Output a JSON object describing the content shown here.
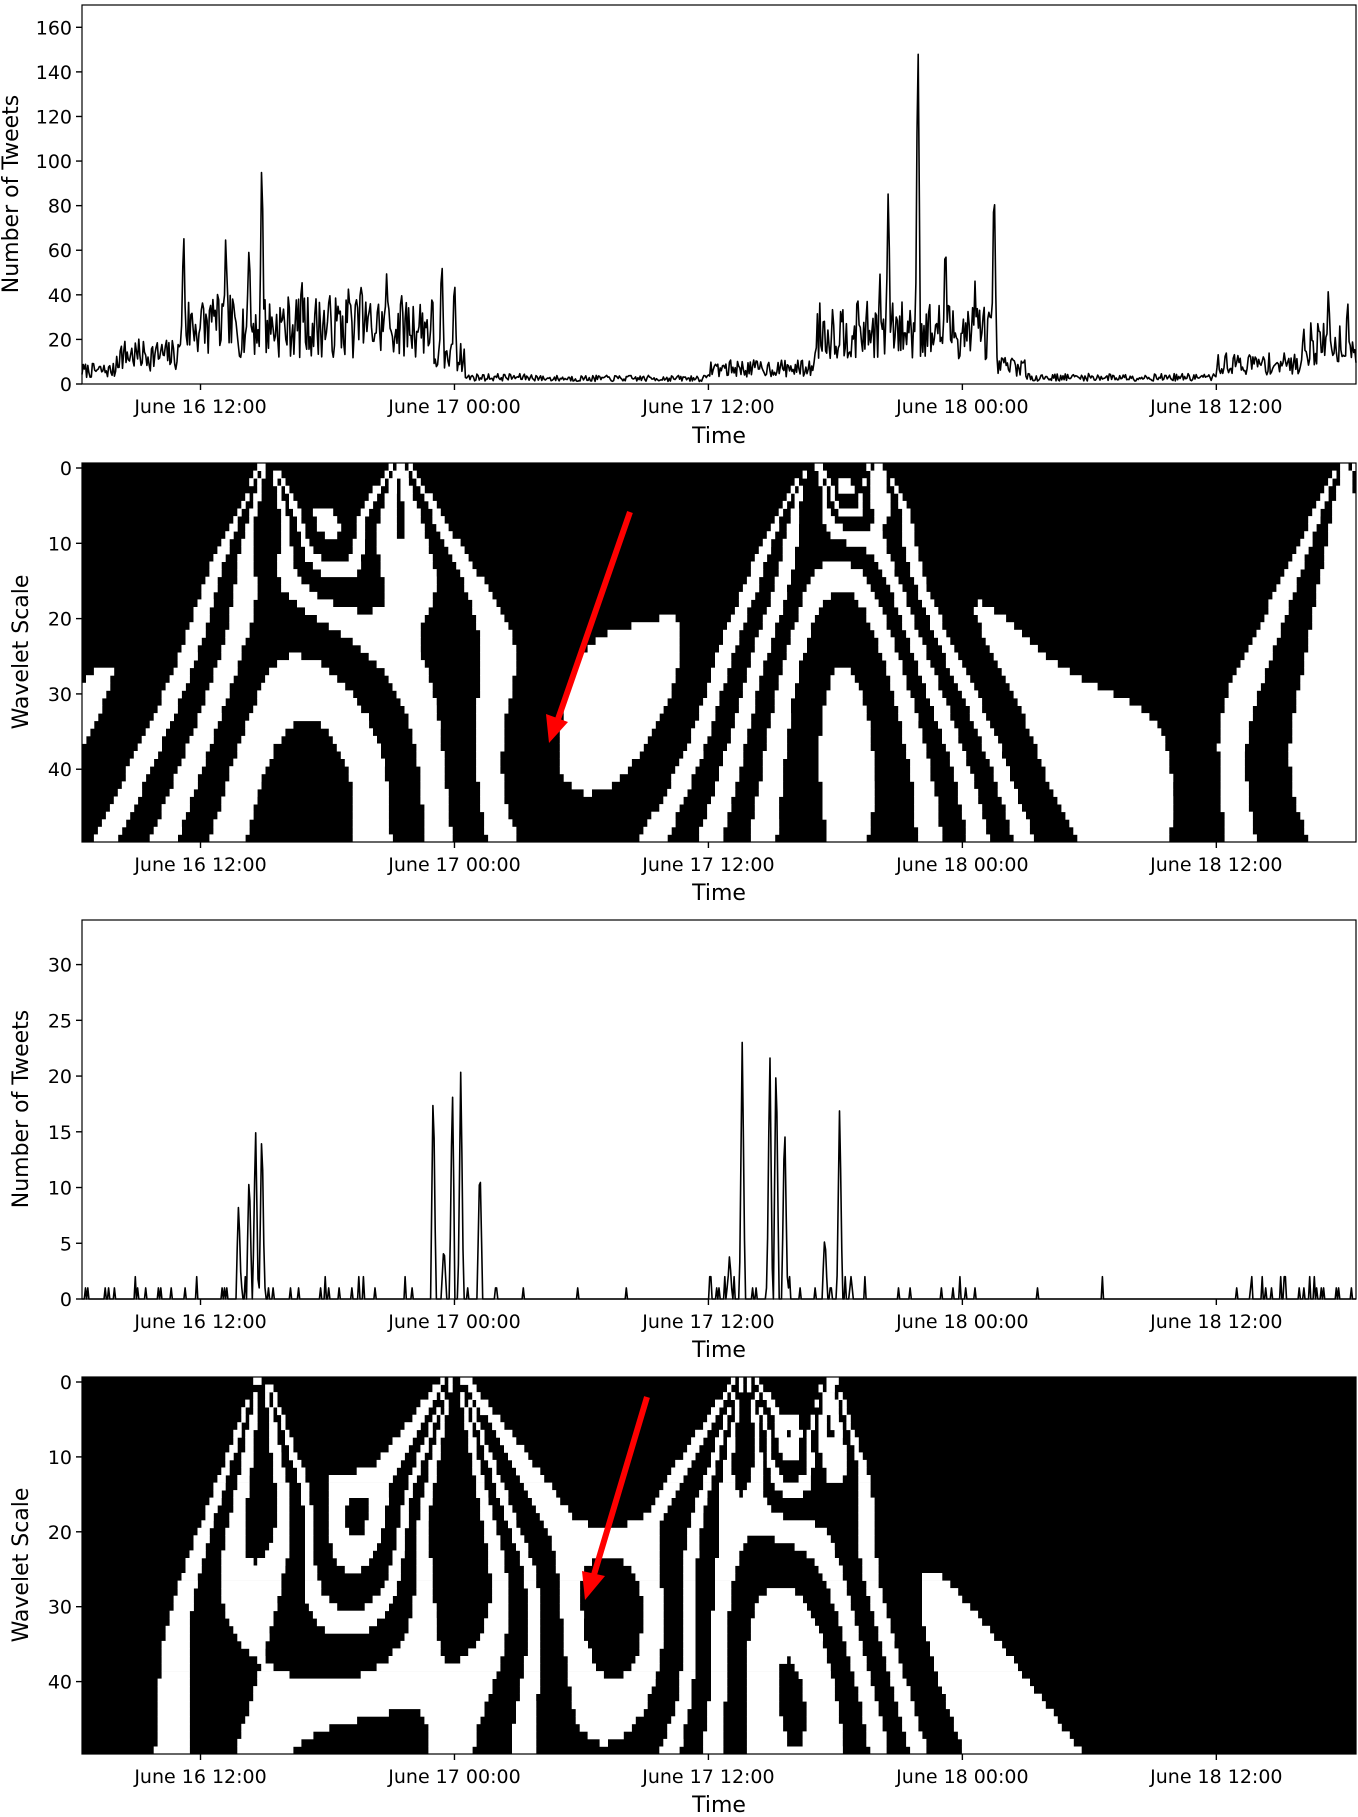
{
  "chart_data": [
    {
      "type": "line",
      "xlabel": "Time",
      "ylabel": "Number of Tweets",
      "x_ticks": [
        "June 16 12:00",
        "June 17 00:00",
        "June 17 12:00",
        "June 18 00:00",
        "June 18 12:00"
      ],
      "y_ticks": [
        "0",
        "20",
        "40",
        "60",
        "80",
        "100",
        "120",
        "140",
        "160"
      ],
      "xlim_hours_from_tick0": [
        -5.6,
        54.6
      ],
      "ylim": [
        0,
        170
      ],
      "line_color": "#000000",
      "peaks": [
        {
          "t": -0.8,
          "v": 74
        },
        {
          "t": 0.6,
          "v": 43
        },
        {
          "t": 1.2,
          "v": 72
        },
        {
          "t": 2.3,
          "v": 69
        },
        {
          "t": 2.9,
          "v": 109
        },
        {
          "t": 4.8,
          "v": 46
        },
        {
          "t": 7.0,
          "v": 47
        },
        {
          "t": 7.6,
          "v": 47
        },
        {
          "t": 8.8,
          "v": 52
        },
        {
          "t": 11.4,
          "v": 61
        },
        {
          "t": 12.0,
          "v": 52
        },
        {
          "t": 32.1,
          "v": 52
        },
        {
          "t": 32.5,
          "v": 92
        },
        {
          "t": 33.9,
          "v": 164
        },
        {
          "t": 35.2,
          "v": 71
        },
        {
          "t": 36.6,
          "v": 48
        },
        {
          "t": 37.5,
          "v": 99
        },
        {
          "t": 53.3,
          "v": 46
        },
        {
          "t": 54.2,
          "v": 41
        }
      ]
    },
    {
      "type": "heatmap",
      "xlabel": "Time",
      "ylabel": "Wavelet Scale",
      "x_ticks": [
        "June 16 12:00",
        "June 17 00:00",
        "June 17 12:00",
        "June 18 00:00",
        "June 18 12:00"
      ],
      "y_ticks": [
        "0",
        "10",
        "20",
        "30",
        "40"
      ],
      "xlim_hours_from_tick0": [
        -5.6,
        54.6
      ],
      "ylim": [
        49,
        0
      ],
      "colors": [
        "#000000",
        "#ffffff"
      ],
      "annotation": {
        "type": "arrow",
        "color": "#ff0000"
      }
    },
    {
      "type": "line",
      "xlabel": "Time",
      "ylabel": "Number of Tweets",
      "x_ticks": [
        "June 16 12:00",
        "June 17 00:00",
        "June 17 12:00",
        "June 18 00:00",
        "June 18 12:00"
      ],
      "y_ticks": [
        "0",
        "5",
        "10",
        "15",
        "20",
        "25",
        "30"
      ],
      "xlim_hours_from_tick0": [
        -5.6,
        54.6
      ],
      "ylim": [
        0,
        34
      ],
      "line_color": "#000000",
      "peaks": [
        {
          "t": 1.8,
          "v": 9
        },
        {
          "t": 2.3,
          "v": 12
        },
        {
          "t": 2.6,
          "v": 16
        },
        {
          "t": 2.9,
          "v": 16
        },
        {
          "t": 11.0,
          "v": 20
        },
        {
          "t": 11.5,
          "v": 5
        },
        {
          "t": 11.9,
          "v": 20
        },
        {
          "t": 12.3,
          "v": 21
        },
        {
          "t": 13.2,
          "v": 13
        },
        {
          "t": 25.0,
          "v": 4
        },
        {
          "t": 25.6,
          "v": 24
        },
        {
          "t": 26.9,
          "v": 23
        },
        {
          "t": 27.2,
          "v": 23
        },
        {
          "t": 27.6,
          "v": 17
        },
        {
          "t": 29.5,
          "v": 6
        },
        {
          "t": 30.2,
          "v": 18
        }
      ]
    },
    {
      "type": "heatmap",
      "xlabel": "Time",
      "ylabel": "Wavelet Scale",
      "x_ticks": [
        "June 16 12:00",
        "June 17 00:00",
        "June 17 12:00",
        "June 18 00:00",
        "June 18 12:00"
      ],
      "y_ticks": [
        "0",
        "10",
        "20",
        "30",
        "40"
      ],
      "xlim_hours_from_tick0": [
        -5.6,
        54.6
      ],
      "ylim": [
        49,
        0
      ],
      "colors": [
        "#000000",
        "#ffffff"
      ],
      "annotation": {
        "type": "arrow",
        "color": "#ff0000"
      }
    }
  ]
}
